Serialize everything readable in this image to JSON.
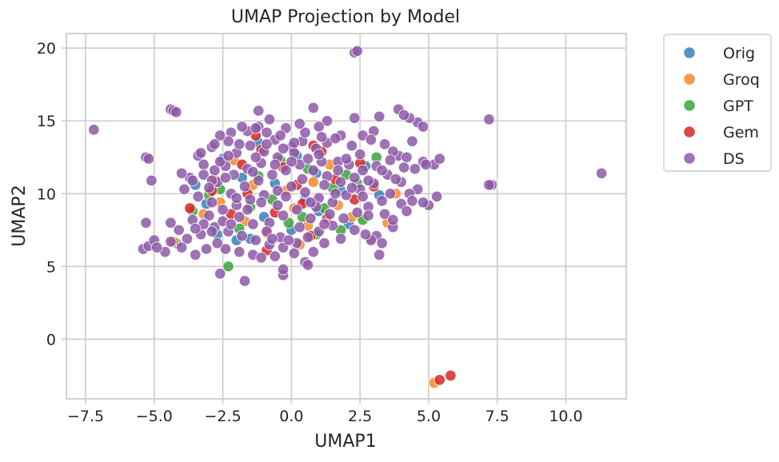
{
  "chart_data": {
    "type": "scatter",
    "title": "UMAP Projection by Model",
    "xlabel": "UMAP1",
    "ylabel": "UMAP2",
    "xlim": [
      -8.2,
      12.2
    ],
    "ylim": [
      -4.1,
      21.0
    ],
    "xticks": [
      -7.5,
      -5.0,
      -2.5,
      0.0,
      2.5,
      5.0,
      7.5,
      10.0
    ],
    "xtick_labels": [
      "−7.5",
      "−5.0",
      "−2.5",
      "0.0",
      "2.5",
      "5.0",
      "7.5",
      "10.0"
    ],
    "yticks": [
      0,
      5,
      10,
      15,
      20
    ],
    "ytick_labels": [
      "0",
      "5",
      "10",
      "15",
      "20"
    ],
    "grid": true,
    "legend_position": "outside-top-right",
    "series": [
      {
        "name": "Orig",
        "color": "#3b7fb6",
        "points": [
          [
            -2.5,
            12.4
          ],
          [
            -1.2,
            13.5
          ],
          [
            -2.0,
            6.8
          ],
          [
            -1.5,
            6.9
          ],
          [
            0.2,
            12.6
          ],
          [
            1.0,
            8.8
          ],
          [
            2.7,
            11.9
          ],
          [
            -4.2,
            6.6
          ],
          [
            -3.1,
            9.3
          ],
          [
            -0.6,
            10.7
          ],
          [
            1.8,
            10.2
          ],
          [
            0.5,
            9.6
          ],
          [
            -1.8,
            11.1
          ],
          [
            2.1,
            7.9
          ],
          [
            -2.7,
            7.2
          ],
          [
            0.9,
            11.4
          ],
          [
            -1.0,
            8.4
          ],
          [
            3.2,
            9.9
          ],
          [
            -3.5,
            10.6
          ],
          [
            0.0,
            7.5
          ]
        ]
      },
      {
        "name": "Groq",
        "color": "#f58a2c",
        "points": [
          [
            -2.6,
            9.4
          ],
          [
            -4.3,
            6.7
          ],
          [
            0.6,
            7.8
          ],
          [
            2.2,
            8.4
          ],
          [
            -0.2,
            10.2
          ],
          [
            1.4,
            12.0
          ],
          [
            -1.4,
            10.6
          ],
          [
            0.3,
            6.5
          ],
          [
            3.8,
            10.0
          ],
          [
            -3.2,
            8.6
          ],
          [
            5.2,
            -3.0
          ],
          [
            -2.1,
            12.3
          ],
          [
            1.7,
            9.2
          ],
          [
            -0.9,
            7.3
          ],
          [
            2.9,
            6.9
          ],
          [
            0.8,
            10.8
          ],
          [
            -1.7,
            8.1
          ],
          [
            3.5,
            8.0
          ],
          [
            -2.8,
            11.0
          ],
          [
            0.1,
            9.0
          ]
        ]
      },
      {
        "name": "GPT",
        "color": "#3aa43a",
        "points": [
          [
            -3.6,
            8.8
          ],
          [
            -0.7,
            9.6
          ],
          [
            1.5,
            10.4
          ],
          [
            0.4,
            8.4
          ],
          [
            -1.9,
            7.6
          ],
          [
            2.6,
            8.2
          ],
          [
            -1.2,
            11.2
          ],
          [
            0.9,
            7.2
          ],
          [
            3.1,
            12.5
          ],
          [
            -2.3,
            5.0
          ],
          [
            1.2,
            9.0
          ],
          [
            -0.4,
            12.3
          ],
          [
            2.0,
            11.3
          ],
          [
            -3.0,
            9.9
          ],
          [
            0.6,
            11.7
          ],
          [
            -1.5,
            9.1
          ],
          [
            1.8,
            7.5
          ],
          [
            -2.6,
            10.3
          ],
          [
            2.4,
            10.7
          ],
          [
            -0.1,
            8.0
          ]
        ]
      },
      {
        "name": "Gem",
        "color": "#d62728",
        "points": [
          [
            5.8,
            -2.5
          ],
          [
            5.4,
            -2.8
          ],
          [
            -3.7,
            9.0
          ],
          [
            -1.3,
            14.0
          ],
          [
            -1.8,
            12.0
          ],
          [
            0.2,
            10.6
          ],
          [
            -0.6,
            8.7
          ],
          [
            1.1,
            12.9
          ],
          [
            2.3,
            9.6
          ],
          [
            -2.9,
            10.2
          ],
          [
            0.7,
            7.1
          ],
          [
            -1.1,
            13.0
          ],
          [
            1.6,
            11.0
          ],
          [
            -0.3,
            11.8
          ],
          [
            3.0,
            10.5
          ],
          [
            -2.2,
            8.6
          ],
          [
            0.4,
            9.3
          ],
          [
            2.5,
            12.1
          ],
          [
            -1.6,
            10.0
          ],
          [
            1.3,
            8.3
          ],
          [
            -0.9,
            6.1
          ],
          [
            0.8,
            13.3
          ]
        ]
      },
      {
        "name": "DS",
        "color": "#8e5aa7",
        "points": [
          [
            -7.2,
            14.4
          ],
          [
            11.3,
            11.4
          ],
          [
            2.3,
            19.7
          ],
          [
            2.4,
            19.8
          ],
          [
            -4.4,
            15.8
          ],
          [
            -4.3,
            15.7
          ],
          [
            -4.2,
            15.6
          ],
          [
            -5.3,
            12.5
          ],
          [
            -5.2,
            12.4
          ],
          [
            7.2,
            15.1
          ],
          [
            7.3,
            10.6
          ],
          [
            7.2,
            10.6
          ],
          [
            -5.1,
            10.9
          ],
          [
            -5.3,
            8.0
          ],
          [
            -5.4,
            6.2
          ],
          [
            -5.2,
            6.4
          ],
          [
            -5.0,
            6.8
          ],
          [
            -4.6,
            6.0
          ],
          [
            -4.4,
            8.0
          ],
          [
            -1.7,
            4.0
          ],
          [
            -2.6,
            4.5
          ],
          [
            -0.3,
            4.4
          ],
          [
            -0.3,
            4.8
          ],
          [
            0.5,
            5.3
          ],
          [
            0.6,
            5.1
          ],
          [
            1.2,
            6.6
          ],
          [
            3.2,
            5.8
          ],
          [
            2.3,
            7.5
          ],
          [
            3.1,
            7.1
          ],
          [
            2.9,
            6.8
          ],
          [
            3.7,
            7.7
          ],
          [
            4.0,
            9.3
          ],
          [
            4.2,
            8.8
          ],
          [
            5.0,
            9.2
          ],
          [
            5.3,
            9.8
          ],
          [
            5.2,
            12.0
          ],
          [
            5.4,
            12.4
          ],
          [
            4.8,
            12.2
          ],
          [
            4.4,
            13.6
          ],
          [
            4.6,
            14.9
          ],
          [
            4.8,
            14.6
          ],
          [
            4.3,
            15.2
          ],
          [
            3.9,
            15.8
          ],
          [
            4.1,
            15.4
          ],
          [
            3.2,
            15.3
          ],
          [
            2.3,
            15.2
          ],
          [
            2.6,
            14.0
          ],
          [
            3.0,
            14.3
          ],
          [
            1.8,
            14.0
          ],
          [
            1.3,
            15.0
          ],
          [
            1.0,
            14.6
          ],
          [
            0.8,
            15.9
          ],
          [
            -0.2,
            14.5
          ],
          [
            -0.8,
            15.1
          ],
          [
            -1.2,
            14.6
          ],
          [
            -1.6,
            14.3
          ],
          [
            -2.2,
            14.2
          ],
          [
            -2.3,
            13.6
          ],
          [
            -2.9,
            13.2
          ],
          [
            -3.4,
            12.6
          ],
          [
            -3.7,
            11.1
          ],
          [
            -4.0,
            11.4
          ],
          [
            -3.2,
            12.0
          ],
          [
            -2.8,
            11.6
          ],
          [
            -2.4,
            11.9
          ],
          [
            -2.0,
            12.8
          ],
          [
            -1.5,
            13.3
          ],
          [
            -1.0,
            12.9
          ],
          [
            -0.6,
            13.7
          ],
          [
            0.0,
            13.2
          ],
          [
            0.4,
            13.6
          ],
          [
            0.9,
            13.1
          ],
          [
            1.3,
            13.5
          ],
          [
            1.7,
            12.2
          ],
          [
            2.1,
            12.0
          ],
          [
            2.6,
            11.6
          ],
          [
            3.1,
            11.9
          ],
          [
            3.5,
            11.3
          ],
          [
            3.9,
            12.6
          ],
          [
            4.2,
            12.5
          ],
          [
            4.5,
            11.7
          ],
          [
            4.0,
            10.8
          ],
          [
            3.6,
            10.0
          ],
          [
            3.3,
            9.5
          ],
          [
            2.8,
            9.1
          ],
          [
            2.4,
            8.7
          ],
          [
            1.9,
            8.3
          ],
          [
            1.5,
            7.8
          ],
          [
            1.0,
            7.4
          ],
          [
            0.6,
            7.0
          ],
          [
            0.2,
            6.6
          ],
          [
            -0.3,
            6.3
          ],
          [
            -0.8,
            6.5
          ],
          [
            -1.3,
            6.8
          ],
          [
            -1.8,
            7.1
          ],
          [
            -2.3,
            7.4
          ],
          [
            -2.8,
            7.7
          ],
          [
            -3.3,
            7.2
          ],
          [
            -3.8,
            6.9
          ],
          [
            -4.1,
            7.5
          ],
          [
            -3.6,
            8.2
          ],
          [
            -3.0,
            8.5
          ],
          [
            -2.5,
            8.9
          ],
          [
            -2.0,
            9.2
          ],
          [
            -1.5,
            9.6
          ],
          [
            -1.0,
            9.9
          ],
          [
            -0.5,
            10.2
          ],
          [
            0.0,
            10.5
          ],
          [
            0.5,
            10.1
          ],
          [
            1.0,
            9.7
          ],
          [
            1.5,
            9.4
          ],
          [
            2.0,
            9.9
          ],
          [
            2.5,
            10.3
          ],
          [
            3.0,
            10.7
          ],
          [
            -2.9,
            9.4
          ],
          [
            -2.2,
            10.0
          ],
          [
            -1.7,
            10.5
          ],
          [
            -1.2,
            10.9
          ],
          [
            -0.7,
            11.3
          ],
          [
            -0.2,
            11.6
          ],
          [
            0.3,
            12.0
          ],
          [
            0.8,
            11.6
          ],
          [
            1.3,
            11.2
          ],
          [
            1.8,
            10.8
          ],
          [
            -2.7,
            10.8
          ],
          [
            -2.1,
            11.3
          ],
          [
            -1.6,
            11.7
          ],
          [
            -1.1,
            12.1
          ],
          [
            -0.5,
            12.5
          ],
          [
            0.1,
            12.8
          ],
          [
            0.6,
            12.4
          ],
          [
            1.1,
            12.2
          ],
          [
            -3.2,
            11.3
          ],
          [
            -2.6,
            12.2
          ],
          [
            -1.9,
            13.4
          ],
          [
            -1.3,
            12.5
          ],
          [
            -0.8,
            8.0
          ],
          [
            -0.3,
            8.5
          ],
          [
            0.2,
            8.9
          ],
          [
            0.7,
            8.3
          ],
          [
            1.2,
            7.9
          ],
          [
            -1.9,
            8.4
          ],
          [
            -1.4,
            7.9
          ],
          [
            -0.9,
            7.4
          ],
          [
            -0.4,
            7.0
          ],
          [
            -2.4,
            6.2
          ],
          [
            -1.9,
            6.0
          ],
          [
            -1.4,
            5.8
          ],
          [
            -3.1,
            6.2
          ],
          [
            -2.7,
            6.6
          ],
          [
            -3.5,
            5.8
          ],
          [
            -4.0,
            6.3
          ],
          [
            -1.1,
            5.6
          ],
          [
            -0.6,
            5.7
          ],
          [
            0.1,
            5.9
          ],
          [
            0.8,
            6.0
          ],
          [
            0.9,
            9.1
          ],
          [
            1.4,
            8.6
          ],
          [
            2.6,
            9.8
          ],
          [
            3.4,
            8.6
          ],
          [
            4.6,
            10.3
          ],
          [
            4.9,
            12.0
          ],
          [
            3.7,
            12.9
          ],
          [
            3.4,
            13.4
          ],
          [
            2.9,
            13.7
          ],
          [
            2.2,
            13.3
          ],
          [
            1.6,
            13.8
          ],
          [
            0.5,
            14.2
          ],
          [
            -0.4,
            14.0
          ],
          [
            -1.8,
            14.6
          ],
          [
            -1.3,
            14.5
          ],
          [
            -2.6,
            14.0
          ],
          [
            -2.8,
            13.4
          ],
          [
            -3.3,
            12.8
          ],
          [
            -1.2,
            15.7
          ],
          [
            0.1,
            13.5
          ],
          [
            -2.3,
            12.6
          ],
          [
            1.7,
            11.6
          ],
          [
            2.3,
            11.1
          ],
          [
            3.8,
            11.0
          ],
          [
            4.3,
            10.0
          ],
          [
            2.7,
            7.2
          ],
          [
            3.3,
            6.6
          ],
          [
            1.8,
            6.9
          ],
          [
            0.3,
            7.7
          ],
          [
            -0.5,
            9.2
          ],
          [
            -1.1,
            9.4
          ],
          [
            -2.0,
            9.7
          ],
          [
            -3.4,
            9.8
          ],
          [
            -3.9,
            10.3
          ],
          [
            -2.9,
            10.9
          ],
          [
            -0.2,
            9.8
          ],
          [
            0.7,
            9.4
          ],
          [
            1.6,
            10.0
          ],
          [
            2.2,
            10.4
          ],
          [
            2.8,
            10.9
          ],
          [
            3.3,
            11.6
          ],
          [
            -0.9,
            13.4
          ],
          [
            -0.3,
            13.1
          ],
          [
            1.0,
            12.7
          ],
          [
            -4.4,
            6.7
          ],
          [
            -4.9,
            6.3
          ],
          [
            -3.2,
            7.9
          ],
          [
            -2.5,
            8.1
          ],
          [
            -1.6,
            8.9
          ],
          [
            0.4,
            11.0
          ],
          [
            1.2,
            10.6
          ],
          [
            0.0,
            12.2
          ],
          [
            -0.6,
            12.0
          ],
          [
            -1.4,
            11.5
          ],
          [
            -2.4,
            11.1
          ],
          [
            -3.0,
            10.4
          ],
          [
            -3.6,
            10.9
          ],
          [
            2.0,
            12.4
          ],
          [
            2.5,
            12.7
          ],
          [
            3.6,
            12.3
          ],
          [
            4.1,
            11.8
          ],
          [
            1.1,
            13.9
          ],
          [
            0.3,
            14.8
          ],
          [
            -0.9,
            14.2
          ],
          [
            2.8,
            8.5
          ],
          [
            3.7,
            8.2
          ],
          [
            4.4,
            9.5
          ],
          [
            4.8,
            9.4
          ],
          [
            -0.1,
            6.8
          ],
          [
            -0.7,
            6.9
          ],
          [
            -2.2,
            7.9
          ],
          [
            -2.9,
            7.4
          ],
          [
            -3.5,
            7.6
          ]
        ]
      }
    ]
  }
}
